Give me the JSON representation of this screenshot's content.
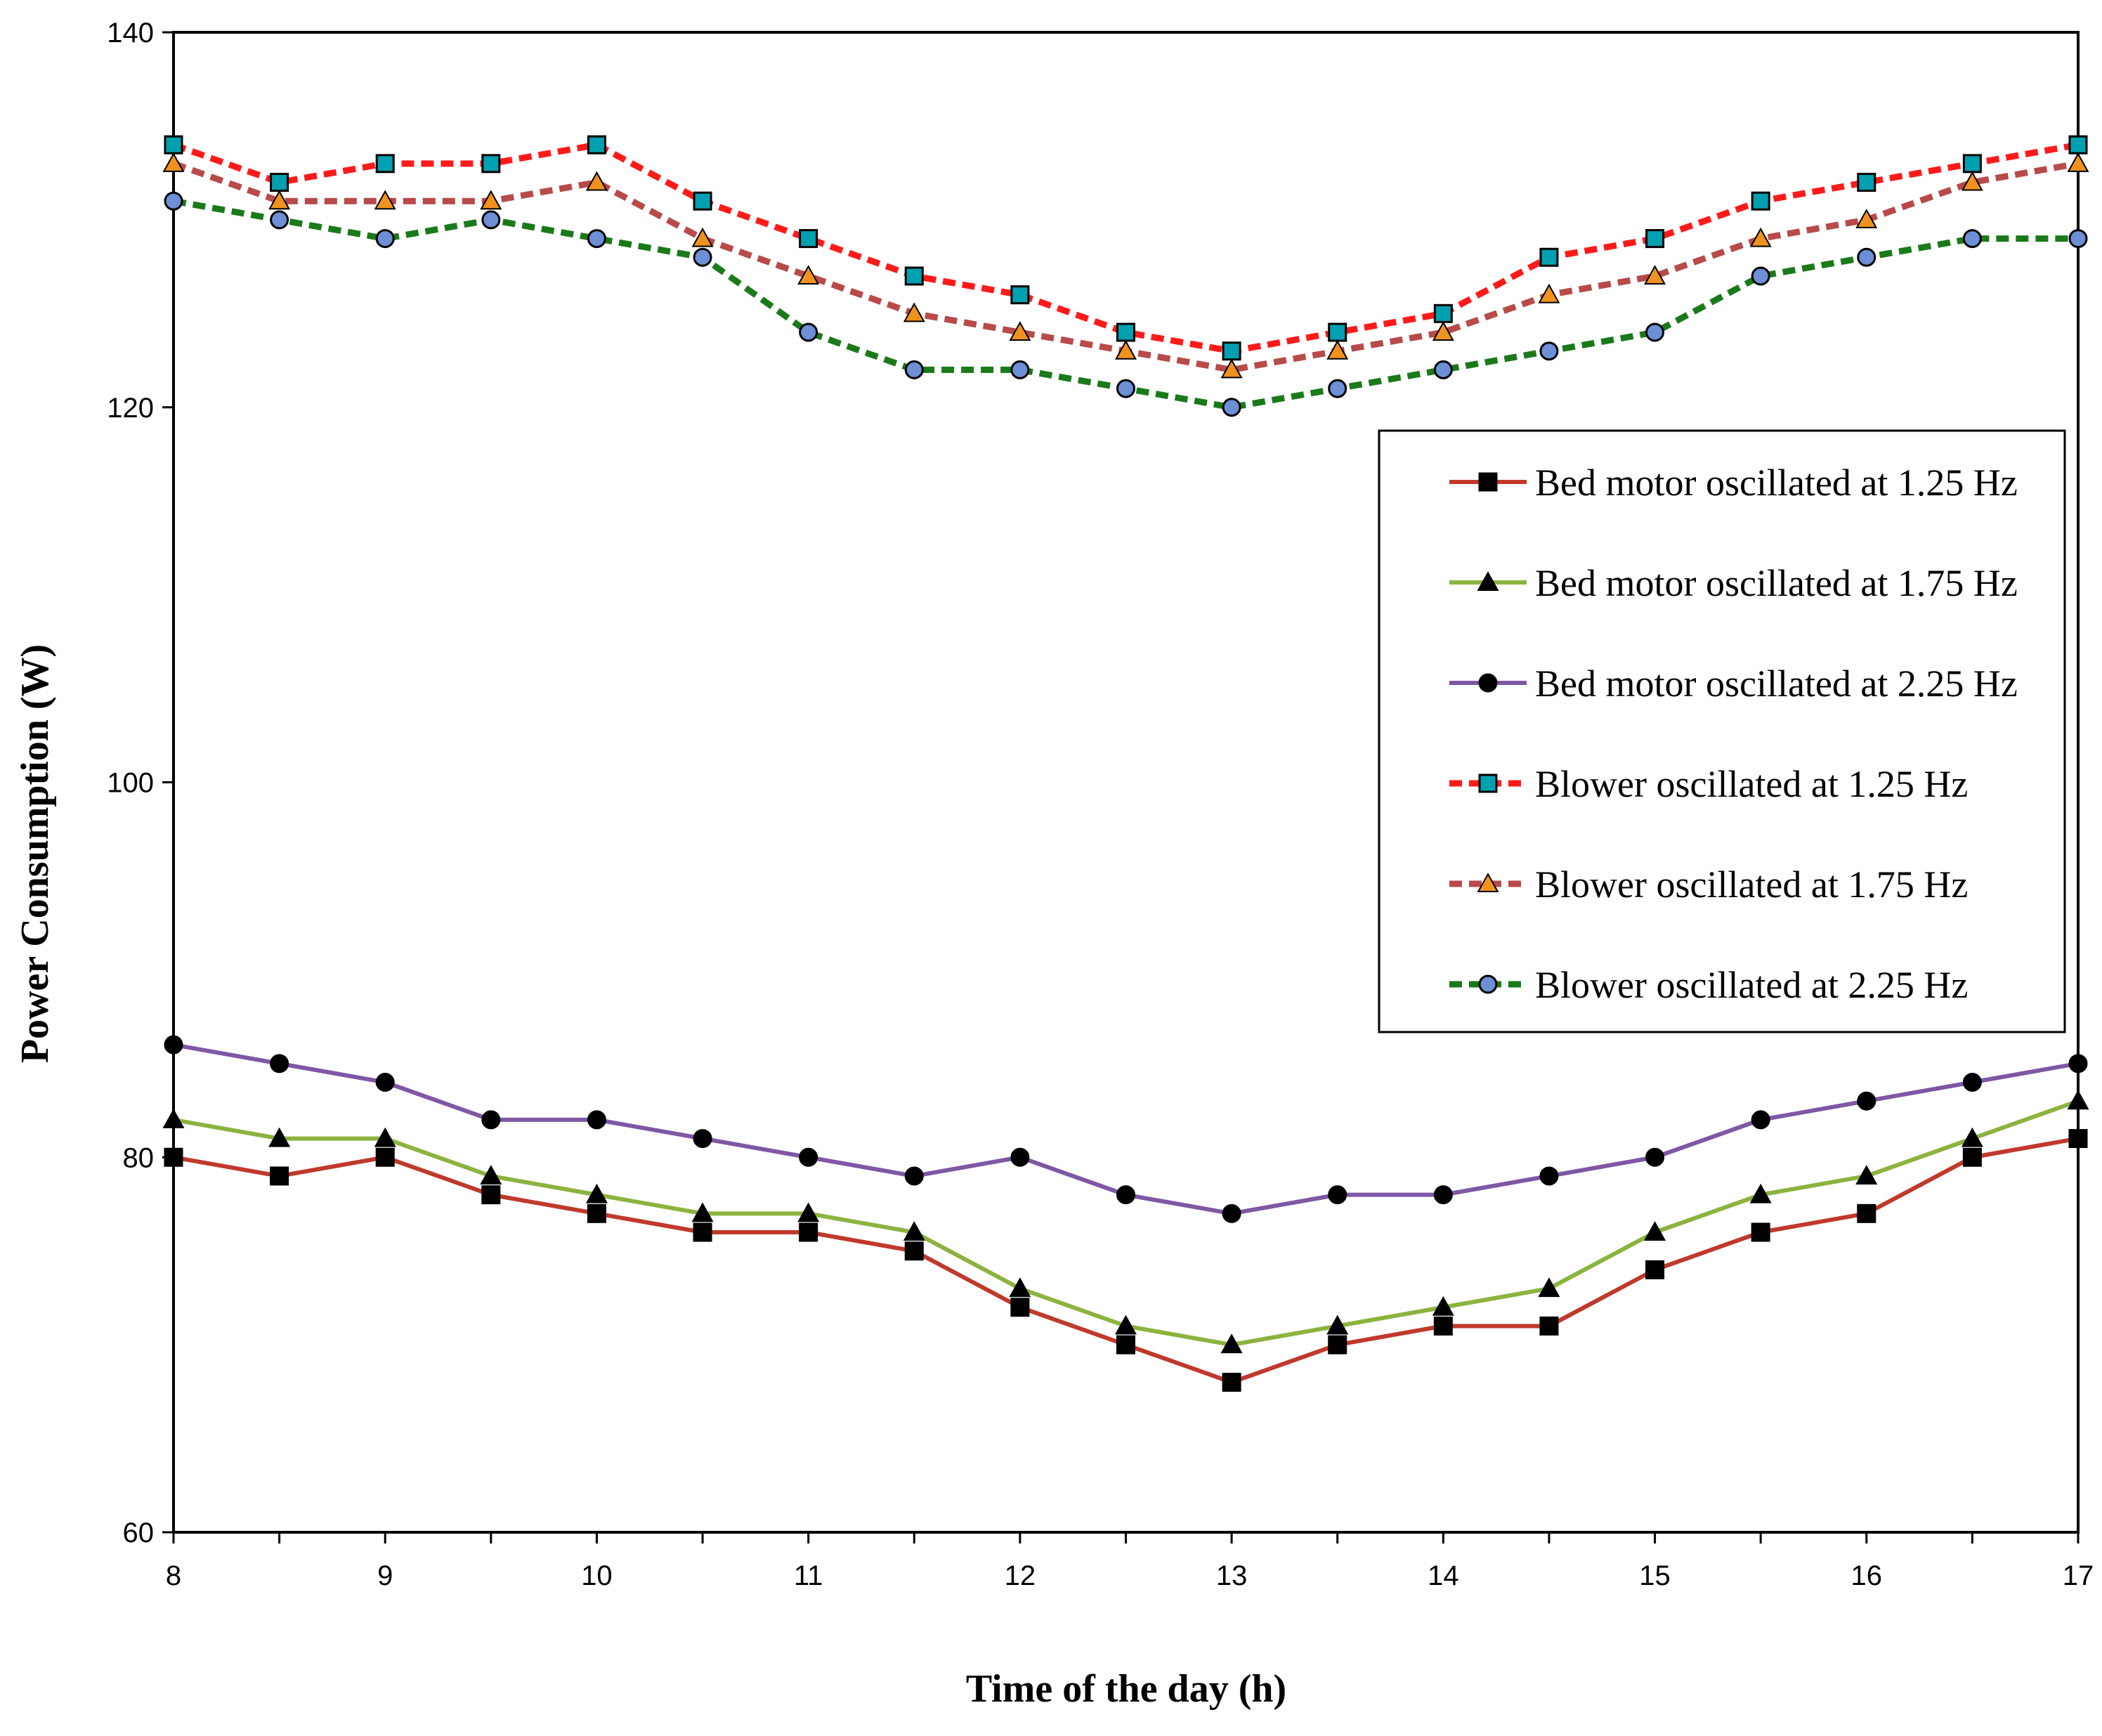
{
  "chart_data": {
    "type": "line",
    "xlabel": "Time of the day (h)",
    "ylabel": "Power Consumption (W)",
    "xlim": [
      8,
      17
    ],
    "ylim": [
      60,
      140
    ],
    "x_ticks": [
      "8",
      "9",
      "10",
      "11",
      "12",
      "13",
      "14",
      "15",
      "16",
      "17"
    ],
    "y_ticks": [
      "60",
      "80",
      "100",
      "120",
      "140"
    ],
    "legend_position": "right",
    "x": [
      8,
      8.5,
      9,
      9.5,
      10,
      10.5,
      11,
      11.5,
      12,
      12.5,
      13,
      13.5,
      14,
      14.5,
      15,
      15.5,
      16,
      16.5,
      17
    ],
    "series": [
      {
        "name": "Bed motor oscillated at 1.25 Hz",
        "color": "#c0392b",
        "marker_color": "#000000",
        "marker": "square",
        "dash": "solid",
        "values": [
          80,
          79,
          80,
          78,
          77,
          76,
          76,
          75,
          72,
          70,
          68,
          70,
          71,
          71,
          74,
          76,
          77,
          80,
          81
        ]
      },
      {
        "name": "Bed motor oscillated at 1.75 Hz",
        "color": "#8cb33e",
        "marker_color": "#000000",
        "marker": "triangle",
        "dash": "solid",
        "values": [
          82,
          81,
          81,
          79,
          78,
          77,
          77,
          76,
          73,
          71,
          70,
          71,
          72,
          73,
          76,
          78,
          79,
          81,
          83
        ]
      },
      {
        "name": "Bed motor oscillated at 2.25 Hz",
        "color": "#7e57a5",
        "marker_color": "#000000",
        "marker": "circle",
        "dash": "solid",
        "values": [
          86,
          85,
          84,
          82,
          82,
          81,
          80,
          79,
          80,
          78,
          77,
          78,
          78,
          79,
          80,
          82,
          83,
          84,
          85
        ]
      },
      {
        "name": "Blower oscillated at 1.25 Hz",
        "color": "#ff1a1a",
        "marker_color": "#00a0b0",
        "marker": "square",
        "dash": "dashed",
        "values": [
          134,
          132,
          133,
          133,
          134,
          131,
          129,
          127,
          126,
          124,
          123,
          124,
          125,
          128,
          129,
          131,
          132,
          133,
          134
        ]
      },
      {
        "name": "Blower oscillated at 1.75 Hz",
        "color": "#b84a4a",
        "marker_color": "#f0921e",
        "marker": "triangle",
        "dash": "dashed",
        "values": [
          133,
          131,
          131,
          131,
          132,
          129,
          127,
          125,
          124,
          123,
          122,
          123,
          124,
          126,
          127,
          129,
          130,
          132,
          133
        ]
      },
      {
        "name": "Blower oscillated at 2.25 Hz",
        "color": "#1a7a1a",
        "marker_color": "#6d8fd6",
        "marker": "circle",
        "dash": "dashed",
        "values": [
          131,
          130,
          129,
          130,
          129,
          128,
          124,
          122,
          122,
          121,
          120,
          121,
          122,
          123,
          124,
          127,
          128,
          129,
          129
        ]
      }
    ]
  }
}
